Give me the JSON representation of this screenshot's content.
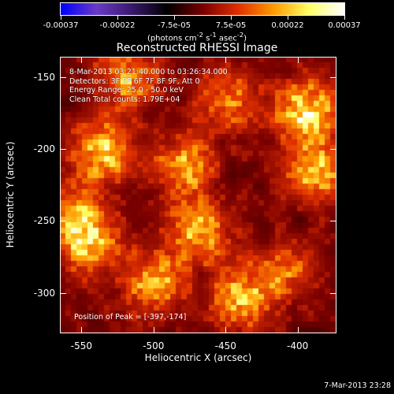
{
  "colorbar": {
    "labels": [
      "-0.00037",
      "-0.00022",
      "-7.5e-05",
      "7.5e-05",
      "0.00022",
      "0.00037"
    ],
    "min": -0.00037,
    "max": 0.00037,
    "units_text": "(photons cm",
    "units_sup1": "-2",
    "units_mid": " s",
    "units_sup2": "-1",
    "units_mid2": " asec",
    "units_sup3": "-2",
    "units_end": ")",
    "colors": [
      "#0000ff",
      "#6a3cc8",
      "#3a1a6e",
      "#000000",
      "#7a0000",
      "#e03000",
      "#ff9a00",
      "#ffff66",
      "#ffffff"
    ]
  },
  "title": "Reconstructed RHESSI Image",
  "annotations": {
    "time_range": "8-Mar-2013 03:21:40.000 to 03:26:34.000",
    "detectors": "Detectors: 3F 5F 6F 7F 8F 9F, Att 0",
    "energy": "Energy Range: 25.0 - 50.0 keV",
    "clean": "Clean     Total counts: 1.79E+04",
    "peak": "Position of Peak = [-397,-174]"
  },
  "xaxis": {
    "label": "Heliocentric X (arcsec)",
    "ticks": [
      "-550",
      "-500",
      "-450",
      "-400"
    ],
    "range": [
      -565,
      -373
    ]
  },
  "yaxis": {
    "label": "Heliocentric Y (arcsec)",
    "ticks": [
      "-150",
      "-200",
      "-250",
      "-300"
    ],
    "range": [
      -328,
      -136
    ]
  },
  "timestamp": "7-Mar-2013 23:28",
  "chart_data": {
    "type": "heatmap",
    "title": "Reconstructed RHESSI Image",
    "xlabel": "Heliocentric X (arcsec)",
    "ylabel": "Heliocentric Y (arcsec)",
    "xlim": [
      -565,
      -373
    ],
    "ylim": [
      -328,
      -136
    ],
    "clim": [
      -0.00037,
      0.00037
    ],
    "peak": [
      -397,
      -174
    ],
    "hot_regions": [
      {
        "x": -397,
        "y": -174,
        "level": 1.0
      },
      {
        "x": -535,
        "y": -200,
        "level": 0.85
      },
      {
        "x": -520,
        "y": -150,
        "level": 0.7
      },
      {
        "x": -480,
        "y": -210,
        "level": 0.7
      },
      {
        "x": -470,
        "y": -255,
        "level": 0.75
      },
      {
        "x": -390,
        "y": -215,
        "level": 0.8
      },
      {
        "x": -545,
        "y": -265,
        "level": 0.65
      },
      {
        "x": -500,
        "y": -290,
        "level": 0.7
      },
      {
        "x": -440,
        "y": -300,
        "level": 0.75
      },
      {
        "x": -555,
        "y": -245,
        "level": 0.7
      },
      {
        "x": -410,
        "y": -280,
        "level": 0.5
      },
      {
        "x": -450,
        "y": -165,
        "level": 0.55
      }
    ]
  }
}
